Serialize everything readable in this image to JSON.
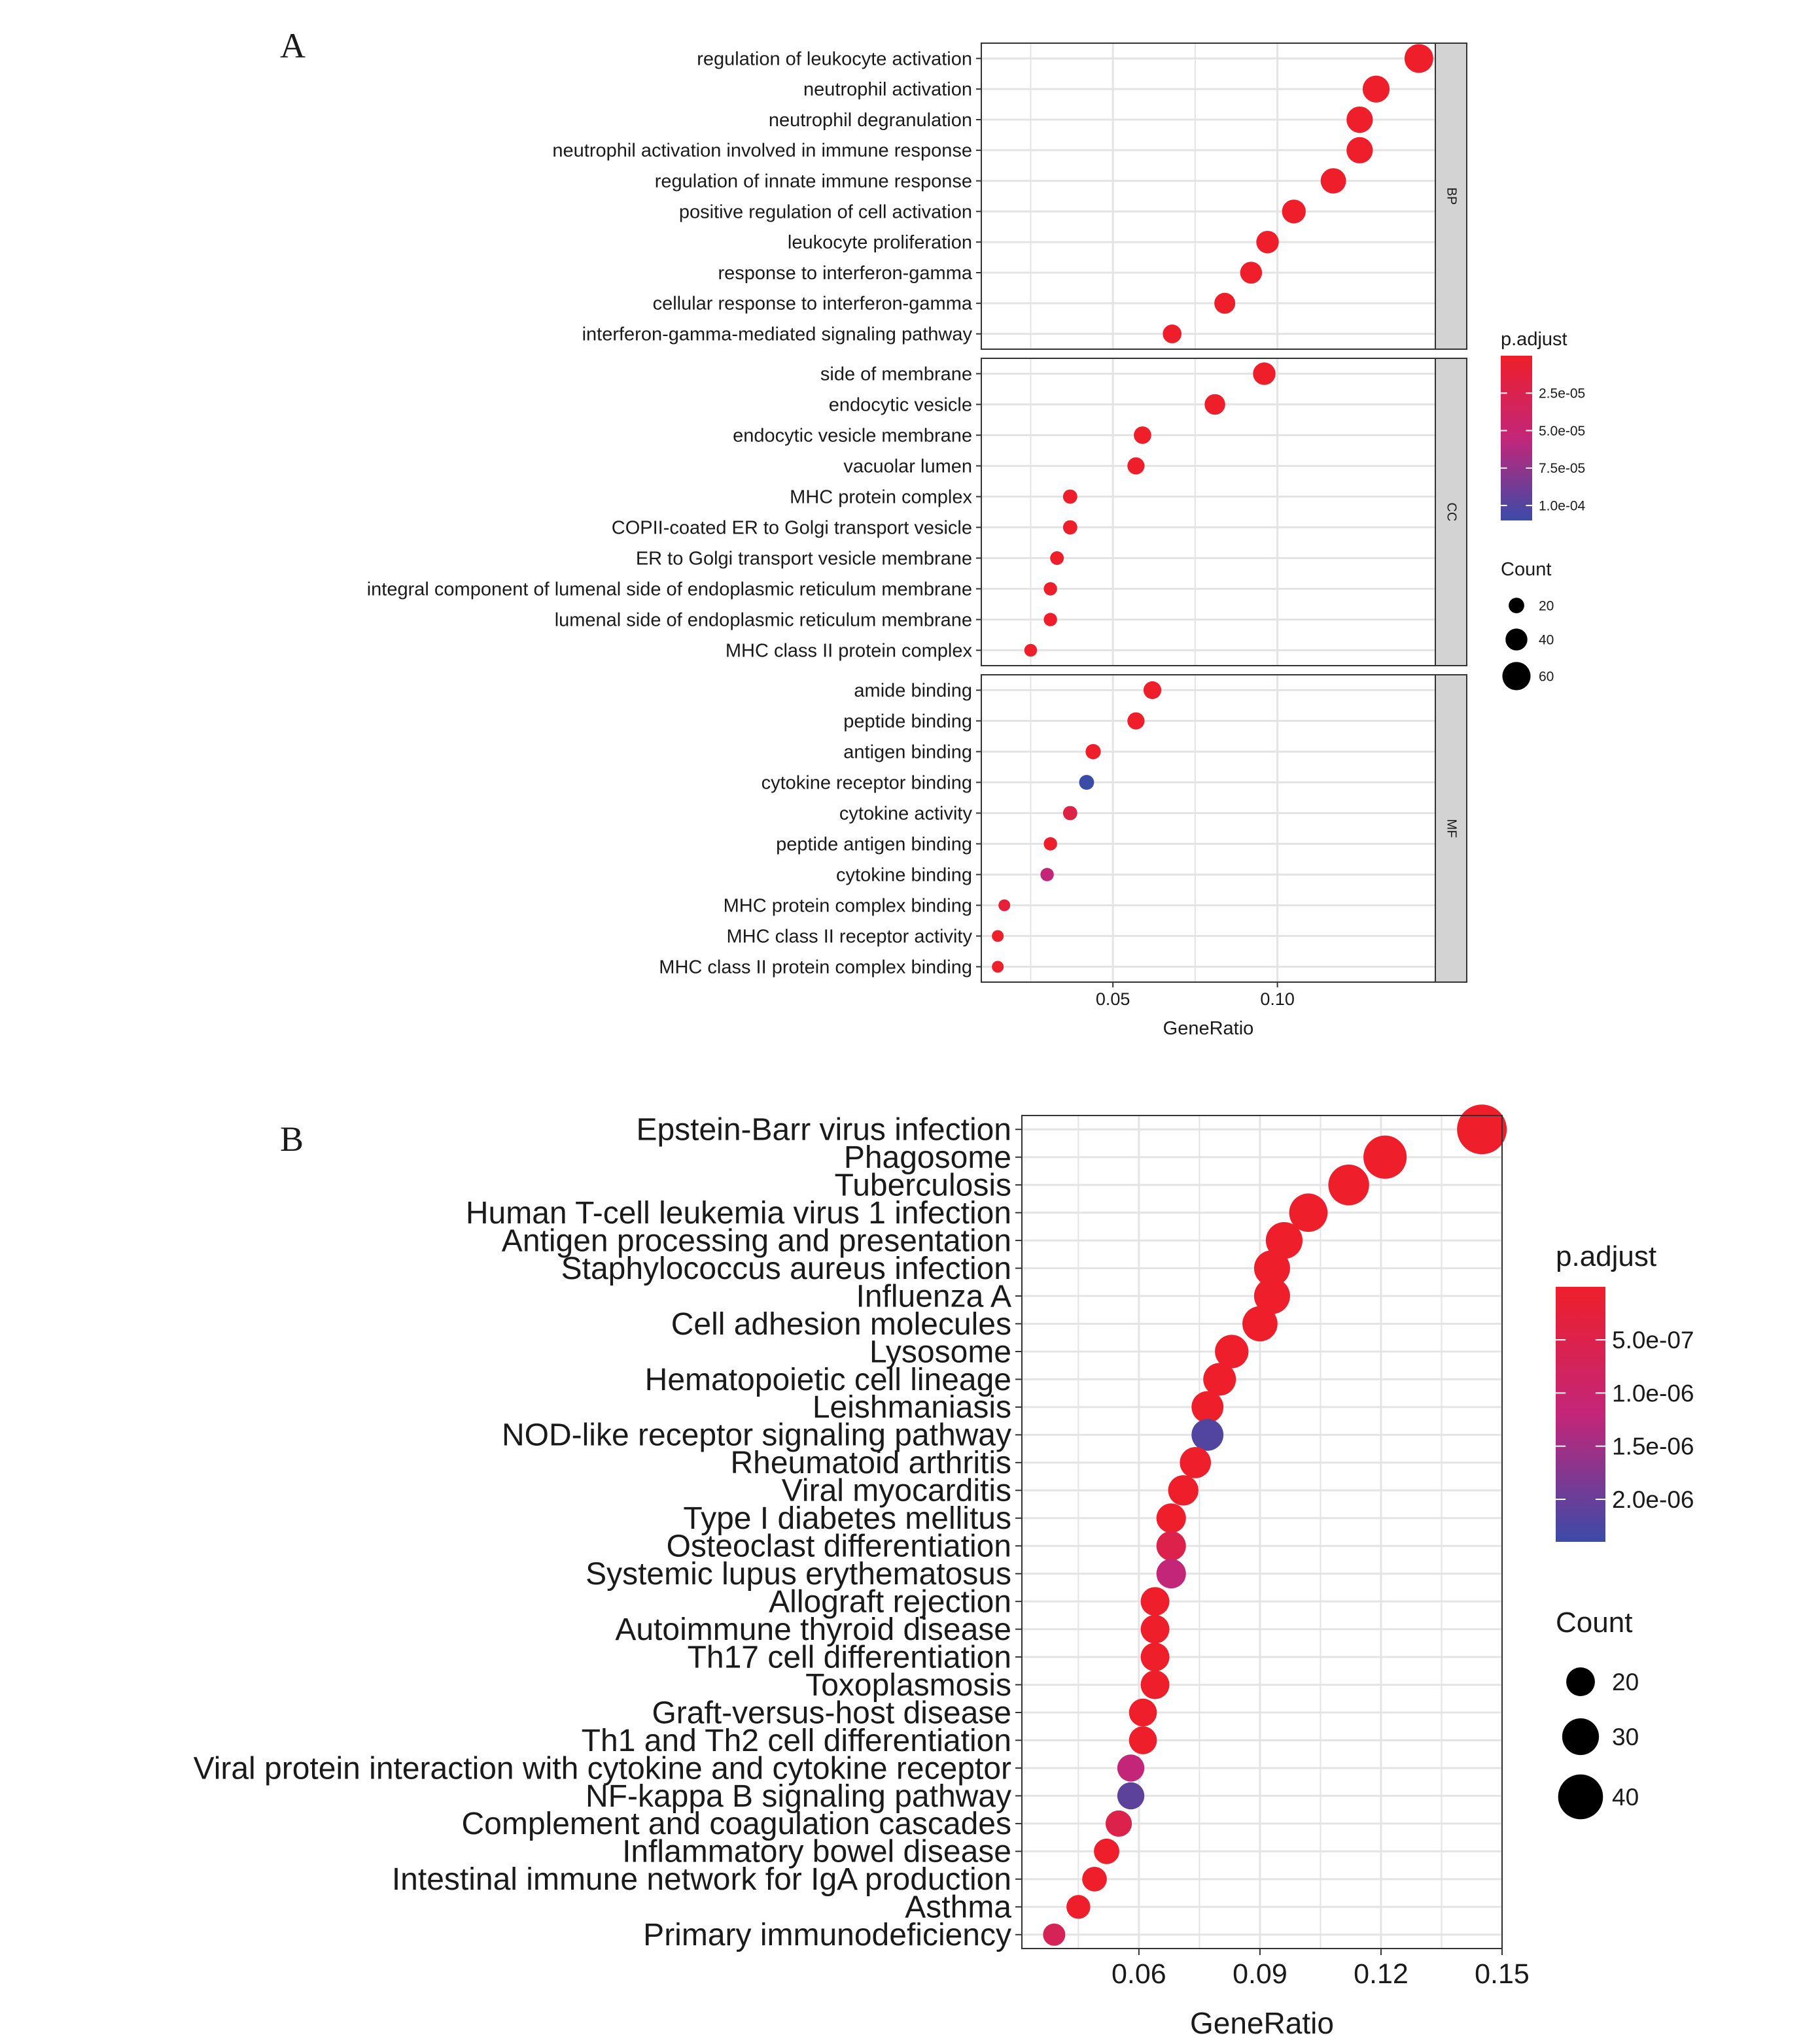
{
  "colors": {
    "high": "#ee1f2b",
    "mid": "#c32679",
    "low": "#3b4ba8",
    "grid": "#e4e4e4",
    "strip": "#d3d3d3",
    "axis": "#333333"
  },
  "chart_data": [
    {
      "type": "scatter",
      "panel_label": "A",
      "xlabel": "GeneRatio",
      "ylabel": "",
      "xlim": [
        0.01,
        0.148
      ],
      "x_ticks": [
        0.05,
        0.1
      ],
      "x_tick_labels": [
        "0.05",
        "0.10"
      ],
      "grid": true,
      "legend_position": "right",
      "color_legend": {
        "title": "p.adjust",
        "range": [
          1e-08,
          0.00011
        ],
        "ticks": [
          2.5e-05,
          5e-05,
          7.5e-05,
          0.0001
        ],
        "tick_labels": [
          "2.5e-05",
          "5.0e-05",
          "7.5e-05",
          "1.0e-04"
        ]
      },
      "size_legend": {
        "title": "Count",
        "values": [
          20,
          40,
          60
        ],
        "labels": [
          "20",
          "40",
          "60"
        ],
        "range": [
          8,
          70
        ]
      },
      "facets": [
        {
          "label": "BP",
          "categories": [
            "regulation of leukocyte activation",
            "neutrophil activation",
            "neutrophil degranulation",
            "neutrophil activation involved in immune response",
            "regulation of innate immune response",
            "positive regulation of cell activation",
            "leukocyte proliferation",
            "response to interferon-gamma",
            "cellular response to interferon-gamma",
            "interferon-gamma-mediated signaling pathway"
          ],
          "gene_ratio": [
            0.143,
            0.13,
            0.125,
            0.125,
            0.117,
            0.105,
            0.097,
            0.092,
            0.084,
            0.068
          ],
          "count": [
            62,
            56,
            54,
            54,
            51,
            46,
            42,
            40,
            37,
            30
          ],
          "p_adjust": [
            1e-08,
            1e-08,
            1e-08,
            1e-08,
            1e-08,
            1e-08,
            1e-08,
            1e-08,
            1e-08,
            1e-08
          ]
        },
        {
          "label": "CC",
          "categories": [
            "side of membrane",
            "endocytic vesicle",
            "endocytic vesicle membrane",
            "vacuolar lumen",
            "MHC protein complex",
            "COPII-coated ER to Golgi transport vesicle",
            "ER to Golgi transport vesicle membrane",
            "integral component of lumenal side of endoplasmic reticulum membrane",
            "lumenal side of endoplasmic reticulum membrane",
            "MHC class II protein complex"
          ],
          "gene_ratio": [
            0.096,
            0.081,
            0.059,
            0.057,
            0.037,
            0.037,
            0.033,
            0.031,
            0.031,
            0.025
          ],
          "count": [
            42,
            36,
            26,
            25,
            16,
            16,
            14,
            13,
            13,
            11
          ],
          "p_adjust": [
            1e-08,
            1e-08,
            1e-08,
            1e-08,
            1e-08,
            1e-08,
            1e-08,
            1e-08,
            1e-08,
            1e-08
          ]
        },
        {
          "label": "MF",
          "categories": [
            "amide binding",
            "peptide binding",
            "antigen binding",
            "cytokine receptor binding",
            "cytokine activity",
            "peptide antigen binding",
            "cytokine binding",
            "MHC protein complex binding",
            "MHC class II receptor activity",
            "MHC class II protein complex binding"
          ],
          "gene_ratio": [
            0.062,
            0.057,
            0.044,
            0.042,
            0.037,
            0.031,
            0.03,
            0.017,
            0.015,
            0.015
          ],
          "count": [
            27,
            25,
            19,
            18,
            16,
            13,
            13,
            7,
            6,
            6
          ],
          "p_adjust": [
            1e-08,
            1e-08,
            1e-08,
            0.00011,
            2e-05,
            1e-08,
            5.5e-05,
            1e-05,
            1e-08,
            1e-08
          ]
        }
      ]
    },
    {
      "type": "scatter",
      "panel_label": "B",
      "xlabel": "GeneRatio",
      "ylabel": "",
      "xlim": [
        0.031,
        0.15
      ],
      "x_ticks": [
        0.06,
        0.09,
        0.12,
        0.15
      ],
      "x_tick_labels": [
        "0.06",
        "0.09",
        "0.12",
        "0.15"
      ],
      "grid": true,
      "legend_position": "right",
      "color_legend": {
        "title": "p.adjust",
        "range": [
          1e-09,
          2.4e-06
        ],
        "ticks": [
          5e-07,
          1e-06,
          1.5e-06,
          2e-06
        ],
        "tick_labels": [
          "5.0e-07",
          "1.0e-06",
          "1.5e-06",
          "2.0e-06"
        ]
      },
      "size_legend": {
        "title": "Count",
        "values": [
          20,
          30,
          40
        ],
        "labels": [
          "20",
          "30",
          "40"
        ],
        "range": [
          12,
          46
        ]
      },
      "facets": [
        {
          "label": "",
          "categories": [
            "Epstein-Barr virus infection",
            "Phagosome",
            "Tuberculosis",
            "Human T-cell leukemia virus 1 infection",
            "Antigen processing and presentation",
            "Staphylococcus aureus infection",
            "Influenza A",
            "Cell adhesion molecules",
            "Lysosome",
            "Hematopoietic cell lineage",
            "Leishmaniasis",
            "NOD-like receptor signaling pathway",
            "Rheumatoid arthritis",
            "Viral myocarditis",
            "Type I diabetes mellitus",
            "Osteoclast differentiation",
            "Systemic lupus erythematosus",
            "Allograft rejection",
            "Autoimmune thyroid disease",
            "Th17 cell differentiation",
            "Toxoplasmosis",
            "Graft-versus-host disease",
            "Th1 and Th2 cell differentiation",
            "Viral protein interaction with cytokine and cytokine receptor",
            "NF-kappa B signaling pathway",
            "Complement and coagulation cascades",
            "Inflammatory bowel disease",
            "Intestinal immune network for IgA production",
            "Asthma",
            "Primary immunodeficiency"
          ],
          "gene_ratio": [
            0.145,
            0.121,
            0.112,
            0.102,
            0.096,
            0.093,
            0.093,
            0.09,
            0.083,
            0.08,
            0.077,
            0.077,
            0.074,
            0.071,
            0.068,
            0.068,
            0.068,
            0.064,
            0.064,
            0.064,
            0.064,
            0.061,
            0.061,
            0.058,
            0.058,
            0.055,
            0.052,
            0.049,
            0.045,
            0.039
          ],
          "count": [
            46,
            38,
            35,
            32,
            30,
            29,
            29,
            28,
            26,
            25,
            24,
            24,
            23,
            22,
            21,
            21,
            21,
            20,
            20,
            20,
            20,
            19,
            19,
            18,
            18,
            17,
            16,
            15,
            14,
            12
          ],
          "p_adjust": [
            1e-09,
            1e-09,
            1e-09,
            1e-09,
            1e-09,
            1e-09,
            1e-09,
            1e-09,
            1e-09,
            1e-09,
            1e-09,
            2.2e-06,
            1e-09,
            1e-09,
            1e-09,
            5e-07,
            1.2e-06,
            1e-09,
            1e-09,
            1e-09,
            1e-09,
            1e-09,
            1e-09,
            1.2e-06,
            2.1e-06,
            5e-07,
            1e-09,
            1e-09,
            1e-09,
            7e-07
          ]
        }
      ]
    }
  ]
}
